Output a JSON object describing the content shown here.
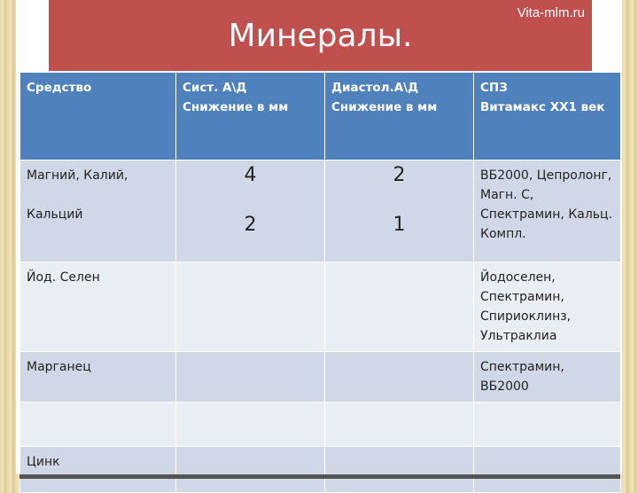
{
  "slide": {
    "site": "Vita-mlm.ru",
    "title": "Минералы."
  },
  "table": {
    "headers": [
      {
        "line1": "Средство",
        "line2": ""
      },
      {
        "line1": "Сист. А\\Д",
        "line2": "Снижение в мм"
      },
      {
        "line1": "Диастол.А\\Д",
        "line2": "Снижение в мм"
      },
      {
        "line1": "СПЗ",
        "line2": "Витамакс ХХ1 век"
      }
    ],
    "rows": [
      {
        "name1": "Магний, Калий,",
        "name2": "Кальций",
        "sys1": "4",
        "sys2": "2",
        "dia1": "2",
        "dia2": "1",
        "products": [
          "ВБ2000, Цепролонг,",
          "Магн. С,",
          "Спектрамин, Кальц.",
          "Компл."
        ]
      },
      {
        "name1": "Йод. Селен",
        "products": [
          "Йодоселен,",
          "Спектрамин,",
          "Спириоклинз,",
          "Ультраклиа"
        ]
      },
      {
        "name1": "Марганец",
        "products": [
          "Спектрамин, ВБ2000"
        ]
      },
      {
        "name1": ""
      },
      {
        "name1": "Цинк"
      }
    ]
  }
}
